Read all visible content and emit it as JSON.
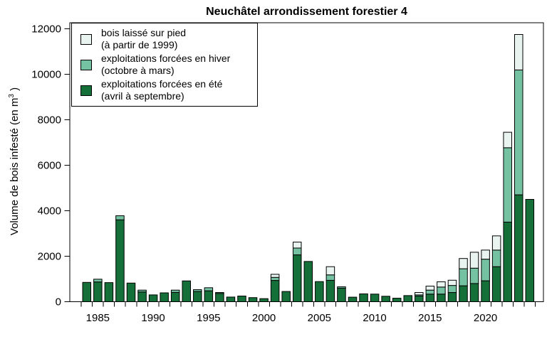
{
  "chart_data": {
    "type": "bar",
    "stacked": true,
    "title": "Neuchâtel arrondissement forestier 4",
    "ylabel_prefix": "Volume de bois infesté (en m",
    "ylabel_sup": "3",
    "ylabel_suffix": " )",
    "ylim": [
      0,
      12000
    ],
    "yticks": [
      0,
      2000,
      4000,
      6000,
      8000,
      10000,
      12000
    ],
    "xtick_years": [
      1985,
      1990,
      1995,
      2000,
      2005,
      2010,
      2015,
      2020
    ],
    "years": [
      1984,
      1985,
      1986,
      1987,
      1988,
      1989,
      1990,
      1991,
      1992,
      1993,
      1994,
      1995,
      1996,
      1997,
      1998,
      1999,
      2000,
      2001,
      2002,
      2003,
      2004,
      2005,
      2006,
      2007,
      2008,
      2009,
      2010,
      2011,
      2012,
      2013,
      2014,
      2015,
      2016,
      2017,
      2018,
      2019,
      2020,
      2021,
      2022,
      2023,
      2024
    ],
    "legend_position": "top-left",
    "grid": false,
    "stack_order": [
      "ete",
      "hiver",
      "blanc"
    ],
    "series": [
      {
        "id": "blanc",
        "label1": "bois laissé sur pied",
        "label2": "(à partir de 1999)",
        "color": "#e9f4f1",
        "values": [
          0,
          0,
          0,
          0,
          0,
          0,
          0,
          0,
          0,
          0,
          0,
          0,
          0,
          0,
          0,
          0,
          0,
          135,
          0,
          260,
          0,
          0,
          360,
          0,
          0,
          0,
          0,
          0,
          0,
          0,
          105,
          175,
          230,
          230,
          450,
          700,
          400,
          625,
          680,
          1560,
          0
        ]
      },
      {
        "id": "hiver",
        "label1": "exploitations forcées en hiver",
        "label2": "(octobre à mars)",
        "color": "#74c2a2",
        "values": [
          0,
          120,
          0,
          180,
          0,
          80,
          0,
          0,
          100,
          0,
          80,
          135,
          40,
          0,
          0,
          0,
          0,
          135,
          0,
          300,
          0,
          0,
          240,
          60,
          0,
          0,
          0,
          0,
          0,
          0,
          50,
          175,
          310,
          310,
          750,
          675,
          950,
          730,
          3270,
          5490,
          0
        ]
      },
      {
        "id": "ete",
        "label1": "exploitations forcées en été",
        "label2": "(avril à septembre)",
        "color": "#156f39",
        "values": [
          850,
          870,
          840,
          3600,
          820,
          430,
          300,
          390,
          410,
          915,
          450,
          480,
          365,
          205,
          250,
          180,
          135,
          935,
          450,
          2060,
          1770,
          885,
          940,
          595,
          200,
          345,
          335,
          240,
          155,
          270,
          250,
          335,
          335,
          405,
          700,
          800,
          920,
          1540,
          3500,
          4700,
          4500
        ]
      }
    ],
    "axis_color": "#000000",
    "bar_border_color": "#000000"
  }
}
